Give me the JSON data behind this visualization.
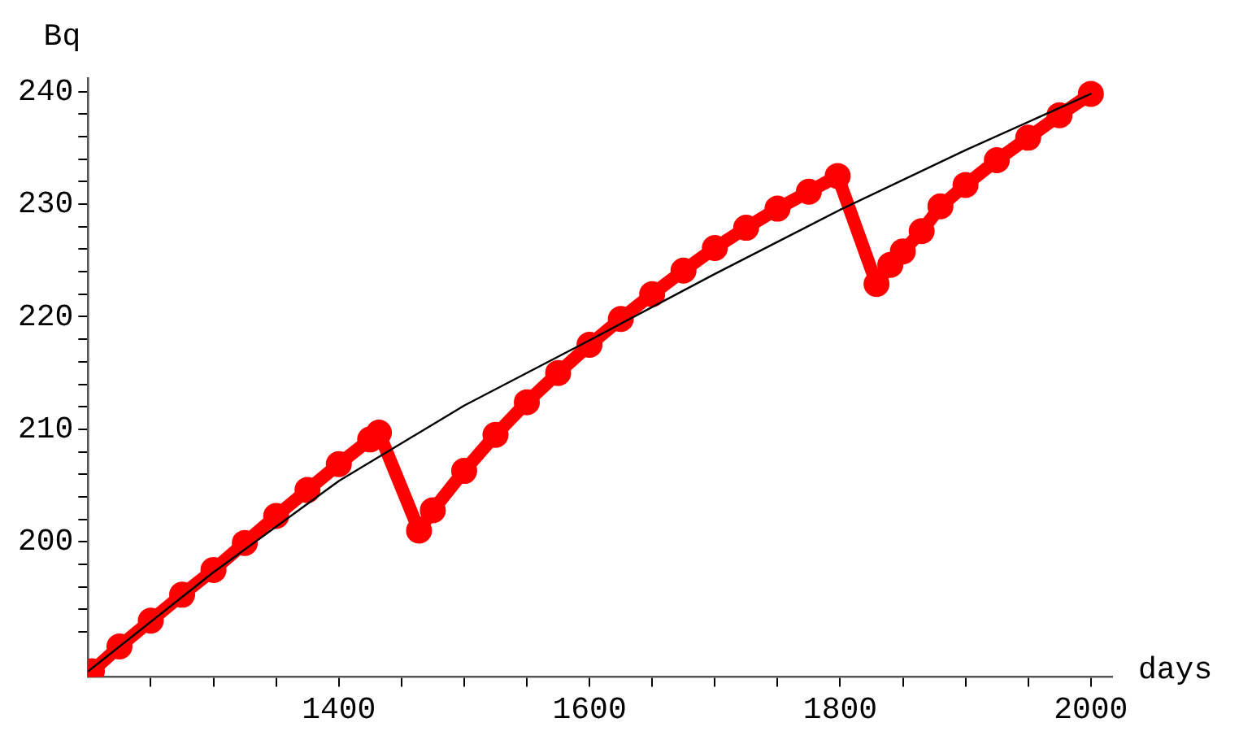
{
  "chart_data": {
    "type": "line",
    "xlabel": "days",
    "ylabel": "Bq",
    "xlim": [
      1200,
      2017
    ],
    "ylim": [
      188,
      241.2
    ],
    "xticks": [
      {
        "value": 1250,
        "label": null
      },
      {
        "value": 1300,
        "label": null
      },
      {
        "value": 1350,
        "label": null
      },
      1400,
      {
        "value": 1450,
        "label": null
      },
      {
        "value": 1500,
        "label": null
      },
      {
        "value": 1550,
        "label": null
      },
      1600,
      {
        "value": 1650,
        "label": null
      },
      {
        "value": 1700,
        "label": null
      },
      {
        "value": 1750,
        "label": null
      },
      1800,
      {
        "value": 1850,
        "label": null
      },
      {
        "value": 1900,
        "label": null
      },
      {
        "value": 1950,
        "label": null
      },
      2000
    ],
    "yticks": [
      {
        "value": 192,
        "label": null
      },
      {
        "value": 194,
        "label": null
      },
      {
        "value": 196,
        "label": null
      },
      {
        "value": 198,
        "label": null
      },
      200,
      {
        "value": 202,
        "label": null
      },
      {
        "value": 204,
        "label": null
      },
      {
        "value": 206,
        "label": null
      },
      {
        "value": 208,
        "label": null
      },
      210,
      {
        "value": 212,
        "label": null
      },
      {
        "value": 214,
        "label": null
      },
      {
        "value": 216,
        "label": null
      },
      {
        "value": 218,
        "label": null
      },
      220,
      {
        "value": 222,
        "label": null
      },
      {
        "value": 224,
        "label": null
      },
      {
        "value": 226,
        "label": null
      },
      {
        "value": 228,
        "label": null
      },
      230,
      {
        "value": 232,
        "label": null
      },
      {
        "value": 234,
        "label": null
      },
      {
        "value": 236,
        "label": null
      },
      {
        "value": 238,
        "label": null
      },
      240
    ],
    "grid": false,
    "legend": false,
    "series": [
      {
        "marker": "none",
        "color": "#000000",
        "x": [
          1200,
          1300,
          1400,
          1500,
          1600,
          1700,
          1800,
          1900,
          2000
        ],
        "values": [
          188.5,
          197.3,
          205.4,
          212.1,
          217.9,
          223.8,
          229.5,
          234.8,
          239.8
        ]
      },
      {
        "marker": "circle",
        "color": "#ff0000",
        "x": [
          1203,
          1225,
          1250,
          1275,
          1300,
          1325,
          1350,
          1375,
          1400,
          1425,
          1432,
          1464,
          1475,
          1500,
          1525,
          1550,
          1575,
          1600,
          1625,
          1650,
          1675,
          1700,
          1725,
          1750,
          1775,
          1798,
          1829,
          1840,
          1850,
          1865,
          1880,
          1900,
          1925,
          1950,
          1975,
          2000
        ],
        "values": [
          188.5,
          190.7,
          193.0,
          195.3,
          197.5,
          199.9,
          202.3,
          204.6,
          206.9,
          209.1,
          209.7,
          201.0,
          202.8,
          206.3,
          209.5,
          212.4,
          215.0,
          217.5,
          219.8,
          222.0,
          224.1,
          226.1,
          227.9,
          229.6,
          231.1,
          232.5,
          222.9,
          224.6,
          225.8,
          227.6,
          229.8,
          231.7,
          233.9,
          235.9,
          237.9,
          239.8
        ]
      }
    ]
  }
}
